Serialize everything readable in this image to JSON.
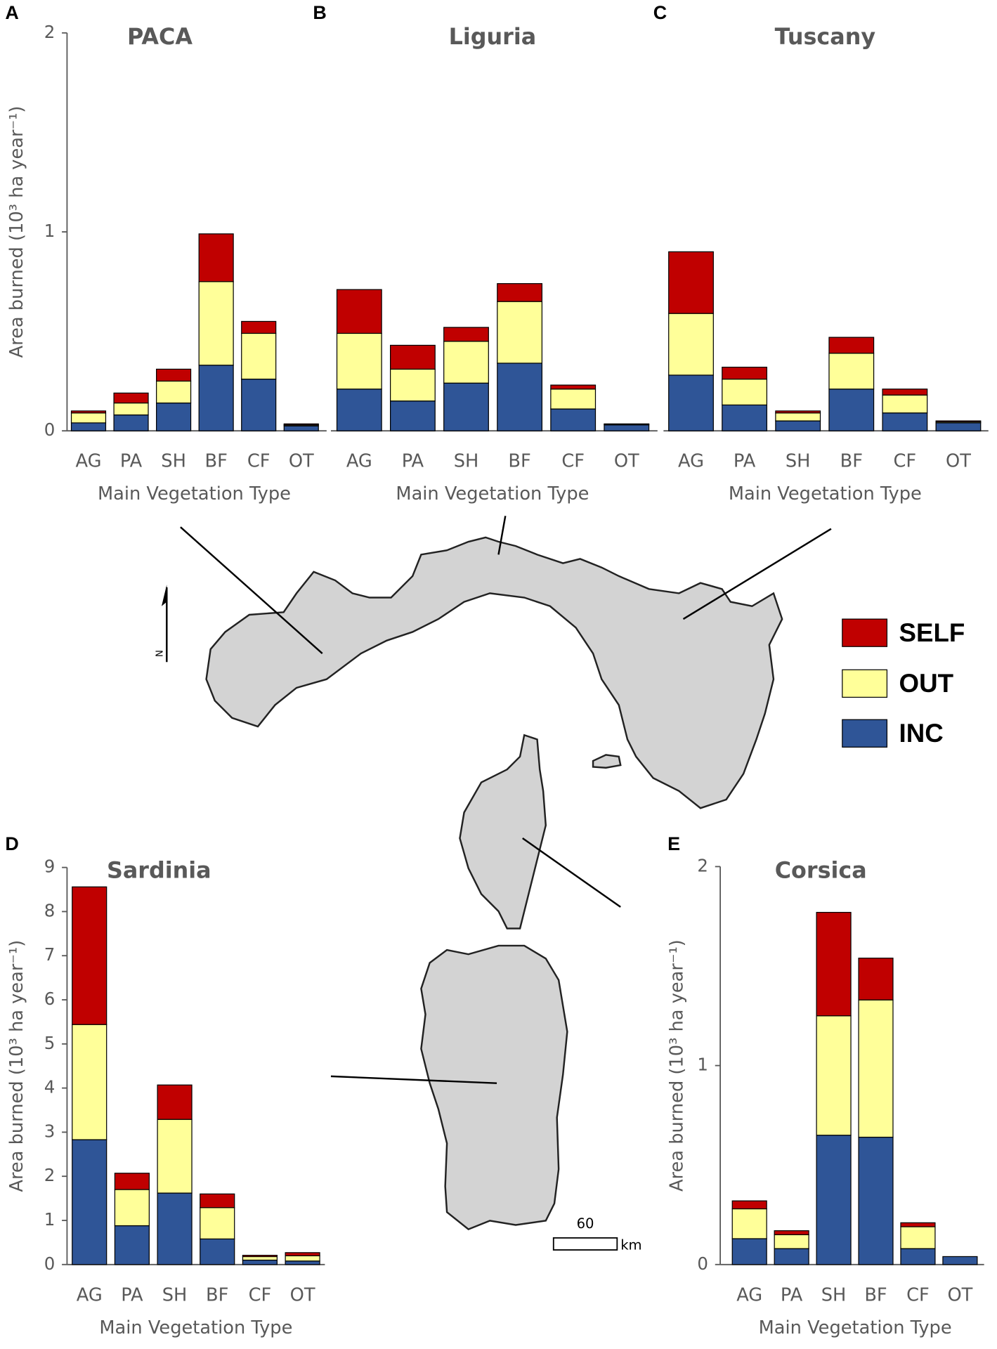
{
  "chart_data": [
    {
      "type": "bar",
      "stacked": true,
      "panel": "A",
      "title": "PACA",
      "x_label": "Main Vegetation Type",
      "y_label": "Area burned (10³ ha year⁻¹)",
      "categories": [
        "AG",
        "PA",
        "SH",
        "BF",
        "CF",
        "OT"
      ],
      "ylim": [
        0,
        2
      ],
      "yticks": [
        0,
        1,
        2
      ],
      "series": [
        {
          "name": "INC",
          "color": "#2f5597",
          "values": [
            0.04,
            0.08,
            0.14,
            0.33,
            0.26,
            0.025
          ]
        },
        {
          "name": "OUT",
          "color": "#ffff99",
          "values": [
            0.05,
            0.06,
            0.11,
            0.42,
            0.23,
            0.005
          ]
        },
        {
          "name": "SELF",
          "color": "#c00000",
          "values": [
            0.01,
            0.05,
            0.06,
            0.24,
            0.06,
            0.005
          ]
        }
      ]
    },
    {
      "type": "bar",
      "stacked": true,
      "panel": "B",
      "title": "Liguria",
      "x_label": "Main Vegetation Type",
      "categories": [
        "AG",
        "PA",
        "SH",
        "BF",
        "CF",
        "OT"
      ],
      "ylim": [
        0,
        2
      ],
      "series": [
        {
          "name": "INC",
          "color": "#2f5597",
          "values": [
            0.21,
            0.15,
            0.24,
            0.34,
            0.11,
            0.03
          ]
        },
        {
          "name": "OUT",
          "color": "#ffff99",
          "values": [
            0.28,
            0.16,
            0.21,
            0.31,
            0.1,
            0.003
          ]
        },
        {
          "name": "SELF",
          "color": "#c00000",
          "values": [
            0.22,
            0.12,
            0.07,
            0.09,
            0.02,
            0.002
          ]
        }
      ]
    },
    {
      "type": "bar",
      "stacked": true,
      "panel": "C",
      "title": "Tuscany",
      "x_label": "Main Vegetation Type",
      "categories": [
        "AG",
        "PA",
        "SH",
        "BF",
        "CF",
        "OT"
      ],
      "ylim": [
        0,
        2
      ],
      "series": [
        {
          "name": "INC",
          "color": "#2f5597",
          "values": [
            0.28,
            0.13,
            0.05,
            0.21,
            0.09,
            0.04
          ]
        },
        {
          "name": "OUT",
          "color": "#ffff99",
          "values": [
            0.31,
            0.13,
            0.04,
            0.18,
            0.09,
            0.005
          ]
        },
        {
          "name": "SELF",
          "color": "#c00000",
          "values": [
            0.31,
            0.06,
            0.01,
            0.08,
            0.03,
            0.005
          ]
        }
      ]
    },
    {
      "type": "bar",
      "stacked": true,
      "panel": "D",
      "title": "Sardinia",
      "x_label": "Main Vegetation Type",
      "y_label": "Area burned (10³ ha year⁻¹)",
      "categories": [
        "AG",
        "PA",
        "SH",
        "BF",
        "CF",
        "OT"
      ],
      "ylim": [
        0,
        9
      ],
      "yticks": [
        0,
        1,
        2,
        3,
        4,
        5,
        6,
        7,
        8,
        9
      ],
      "series": [
        {
          "name": "INC",
          "color": "#2f5597",
          "values": [
            2.83,
            0.88,
            1.62,
            0.58,
            0.1,
            0.08
          ]
        },
        {
          "name": "OUT",
          "color": "#ffff99",
          "values": [
            2.61,
            0.82,
            1.67,
            0.71,
            0.08,
            0.12
          ]
        },
        {
          "name": "SELF",
          "color": "#c00000",
          "values": [
            3.12,
            0.37,
            0.78,
            0.31,
            0.03,
            0.07
          ]
        }
      ]
    },
    {
      "type": "bar",
      "stacked": true,
      "panel": "E",
      "title": "Corsica",
      "x_label": "Main Vegetation Type",
      "y_label": "Area burned (10³ ha year⁻¹)",
      "categories": [
        "AG",
        "PA",
        "SH",
        "BF",
        "CF",
        "OT"
      ],
      "ylim": [
        0,
        2
      ],
      "yticks": [
        0,
        1,
        2
      ],
      "series": [
        {
          "name": "INC",
          "color": "#2f5597",
          "values": [
            0.13,
            0.08,
            0.65,
            0.64,
            0.08,
            0.04
          ]
        },
        {
          "name": "OUT",
          "color": "#ffff99",
          "values": [
            0.15,
            0.07,
            0.6,
            0.69,
            0.11,
            0
          ]
        },
        {
          "name": "SELF",
          "color": "#c00000",
          "values": [
            0.04,
            0.02,
            0.52,
            0.21,
            0.02,
            0
          ]
        }
      ]
    }
  ],
  "map": {
    "north": "N",
    "scale_label": "60",
    "scale_unit": "km"
  }
}
